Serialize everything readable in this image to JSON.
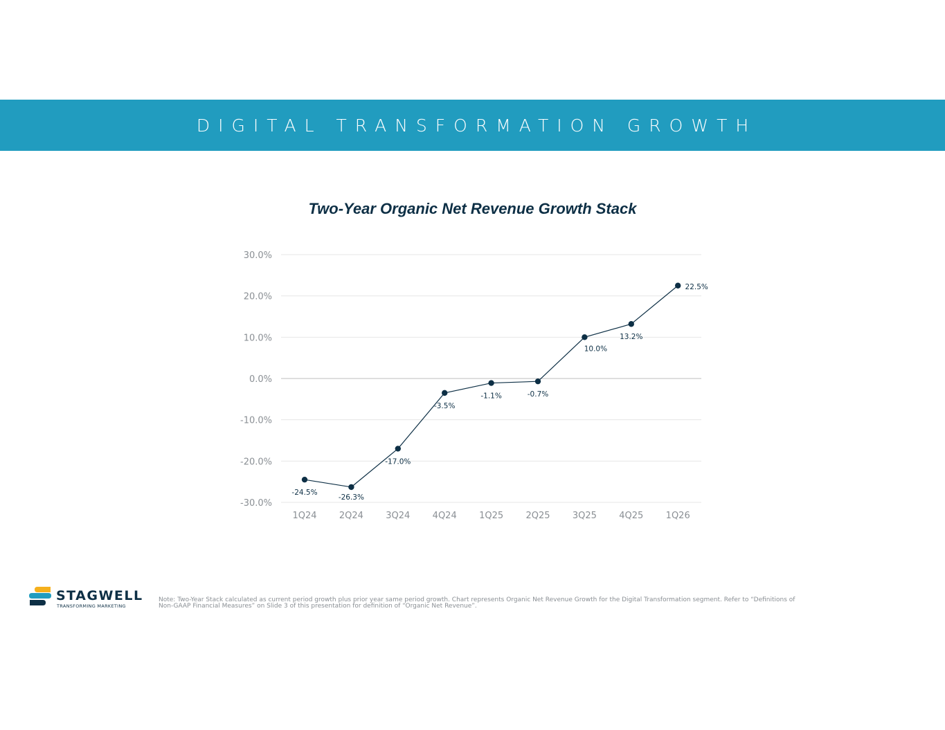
{
  "header": {
    "title": "DIGITAL TRANSFORMATION GROWTH"
  },
  "colors": {
    "banner": "#219cbf",
    "series": "#0d2f45",
    "axis_text": "#8a8f94",
    "grid": "#e6e6e6"
  },
  "chart_data": {
    "type": "line",
    "title": "Two-Year Organic Net Revenue Growth Stack",
    "xlabel": "",
    "ylabel": "",
    "categories": [
      "1Q24",
      "2Q24",
      "3Q24",
      "4Q24",
      "1Q25",
      "2Q25",
      "3Q25",
      "4Q25",
      "1Q26"
    ],
    "series": [
      {
        "values": [
          -24.5,
          -26.3,
          -17.0,
          -3.5,
          -1.1,
          -0.7,
          10.0,
          13.2,
          22.5
        ],
        "data_labels": [
          "-24.5%",
          "-26.3%",
          "-17.0%",
          "-3.5%",
          "-1.1%",
          "-0.7%",
          "10.0%",
          "13.2%",
          "22.5%"
        ]
      }
    ],
    "ylim": [
      -30,
      30
    ],
    "yticks": [
      30,
      20,
      10,
      0,
      -10,
      -20,
      -30
    ],
    "ytick_labels": [
      "30.0%",
      "20.0%",
      "10.0%",
      "0.0%",
      "-10.0%",
      "-20.0%",
      "-30.0%"
    ],
    "grid": true,
    "legend": "none"
  },
  "footer": {
    "logo_name": "STAGWELL",
    "logo_tagline": "TRANSFORMING MARKETING",
    "note_line1": "Note: Two-Year Stack calculated as current period growth plus prior year same period growth. Chart represents Organic Net Revenue Growth for the Digital Transformation segment. Refer to “Definitions of",
    "note_line2": "Non-GAAP Financial Measures” on Slide 3 of this presentation for definition of “Organic Net Revenue”."
  }
}
